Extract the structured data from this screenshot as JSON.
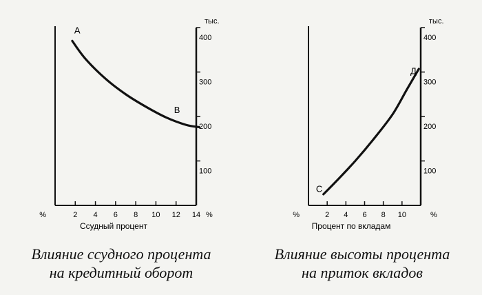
{
  "chart_data": [
    {
      "type": "line",
      "xlabel": "Ссудный процент",
      "x_unit": "%",
      "ylabel": "тыс.",
      "y_unit": "%",
      "xlim": [
        0,
        14
      ],
      "ylim": [
        0,
        400
      ],
      "x_ticks": [
        2,
        4,
        6,
        8,
        10,
        12,
        14
      ],
      "y_ticks": [
        100,
        200,
        300,
        400
      ],
      "grid": false,
      "series": [
        {
          "x": [
            1.7,
            3,
            5,
            7,
            9,
            11,
            13,
            14.3
          ],
          "y": [
            370,
            330,
            285,
            250,
            222,
            198,
            181,
            176
          ]
        }
      ],
      "annotations": [
        {
          "text": "A",
          "x": 1.9,
          "y": 387
        },
        {
          "text": "B",
          "x": 11.8,
          "y": 208
        }
      ],
      "caption": [
        "Влияние ссудного процента",
        "на кредитный оборот"
      ]
    },
    {
      "type": "line",
      "xlabel": "Процент по вкладам",
      "x_unit": "%",
      "ylabel": "тыс.",
      "y_unit": "%",
      "xlim": [
        0,
        12
      ],
      "ylim": [
        0,
        400
      ],
      "x_ticks": [
        2,
        4,
        6,
        8,
        10
      ],
      "y_ticks": [
        100,
        200,
        300,
        400
      ],
      "grid": false,
      "series": [
        {
          "x": [
            1.6,
            3,
            5,
            7,
            9,
            10.5,
            11.8
          ],
          "y": [
            25,
            55,
            100,
            150,
            205,
            260,
            307
          ]
        }
      ],
      "annotations": [
        {
          "text": "Д",
          "x": 10.9,
          "y": 295
        },
        {
          "text": "С",
          "x": 0.8,
          "y": 30
        }
      ],
      "caption": [
        "Влияние высоты процента",
        "на приток вкладов"
      ]
    }
  ]
}
